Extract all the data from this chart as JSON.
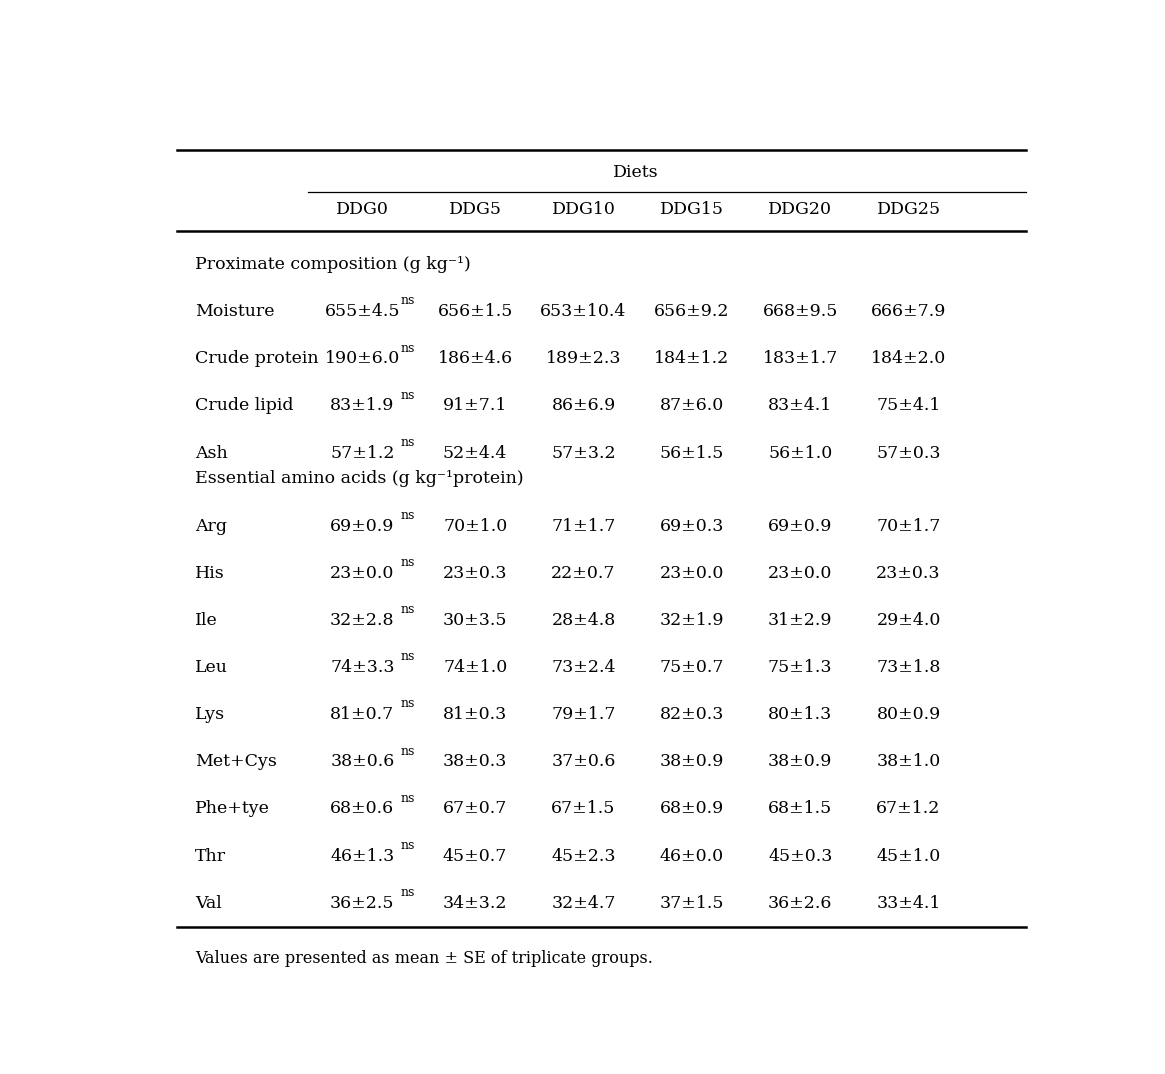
{
  "title_diets": "Diets",
  "col_headers": [
    "DDG0",
    "DDG5",
    "DDG10",
    "DDG15",
    "DDG20",
    "DDG25"
  ],
  "section1_header": "Proximate composition (g kg⁻¹)",
  "section2_header": "Essential amino acids (g kg⁻¹protein)",
  "rows": [
    {
      "label": "Moisture",
      "ddg0": "655±4.5",
      "ddg5": "656±1.5",
      "ddg10": "653±10.4",
      "ddg15": "656±9.2",
      "ddg20": "668±9.5",
      "ddg25": "666±7.9",
      "section": 1
    },
    {
      "label": "Crude protein",
      "ddg0": "190±6.0",
      "ddg5": "186±4.6",
      "ddg10": "189±2.3",
      "ddg15": "184±1.2",
      "ddg20": "183±1.7",
      "ddg25": "184±2.0",
      "section": 1
    },
    {
      "label": "Crude lipid",
      "ddg0": "83±1.9",
      "ddg5": "91±7.1",
      "ddg10": "86±6.9",
      "ddg15": "87±6.0",
      "ddg20": "83±4.1",
      "ddg25": "75±4.1",
      "section": 1
    },
    {
      "label": "Ash",
      "ddg0": "57±1.2",
      "ddg5": "52±4.4",
      "ddg10": "57±3.2",
      "ddg15": "56±1.5",
      "ddg20": "56±1.0",
      "ddg25": "57±0.3",
      "section": 1
    },
    {
      "label": "Arg",
      "ddg0": "69±0.9",
      "ddg5": "70±1.0",
      "ddg10": "71±1.7",
      "ddg15": "69±0.3",
      "ddg20": "69±0.9",
      "ddg25": "70±1.7",
      "section": 2
    },
    {
      "label": "His",
      "ddg0": "23±0.0",
      "ddg5": "23±0.3",
      "ddg10": "22±0.7",
      "ddg15": "23±0.0",
      "ddg20": "23±0.0",
      "ddg25": "23±0.3",
      "section": 2
    },
    {
      "label": "Ile",
      "ddg0": "32±2.8",
      "ddg5": "30±3.5",
      "ddg10": "28±4.8",
      "ddg15": "32±1.9",
      "ddg20": "31±2.9",
      "ddg25": "29±4.0",
      "section": 2
    },
    {
      "label": "Leu",
      "ddg0": "74±3.3",
      "ddg5": "74±1.0",
      "ddg10": "73±2.4",
      "ddg15": "75±0.7",
      "ddg20": "75±1.3",
      "ddg25": "73±1.8",
      "section": 2
    },
    {
      "label": "Lys",
      "ddg0": "81±0.7",
      "ddg5": "81±0.3",
      "ddg10": "79±1.7",
      "ddg15": "82±0.3",
      "ddg20": "80±1.3",
      "ddg25": "80±0.9",
      "section": 2
    },
    {
      "label": "Met+Cys",
      "ddg0": "38±0.6",
      "ddg5": "38±0.3",
      "ddg10": "37±0.6",
      "ddg15": "38±0.9",
      "ddg20": "38±0.9",
      "ddg25": "38±1.0",
      "section": 2
    },
    {
      "label": "Phe+tye",
      "ddg0": "68±0.6",
      "ddg5": "67±0.7",
      "ddg10": "67±1.5",
      "ddg15": "68±0.9",
      "ddg20": "68±1.5",
      "ddg25": "67±1.2",
      "section": 2
    },
    {
      "label": "Thr",
      "ddg0": "46±1.3",
      "ddg5": "45±0.7",
      "ddg10": "45±2.3",
      "ddg15": "46±0.0",
      "ddg20": "45±0.3",
      "ddg25": "45±1.0",
      "section": 2
    },
    {
      "label": "Val",
      "ddg0": "36±2.5",
      "ddg5": "34±3.2",
      "ddg10": "32±4.7",
      "ddg15": "37±1.5",
      "ddg20": "36±2.6",
      "ddg25": "33±4.1",
      "section": 2
    }
  ],
  "footnote": "Values are presented as mean ± SE of triplicate groups.",
  "bg_color": "#ffffff",
  "text_color": "#000000",
  "font_size": 12.5,
  "super_font_size": 9.0
}
